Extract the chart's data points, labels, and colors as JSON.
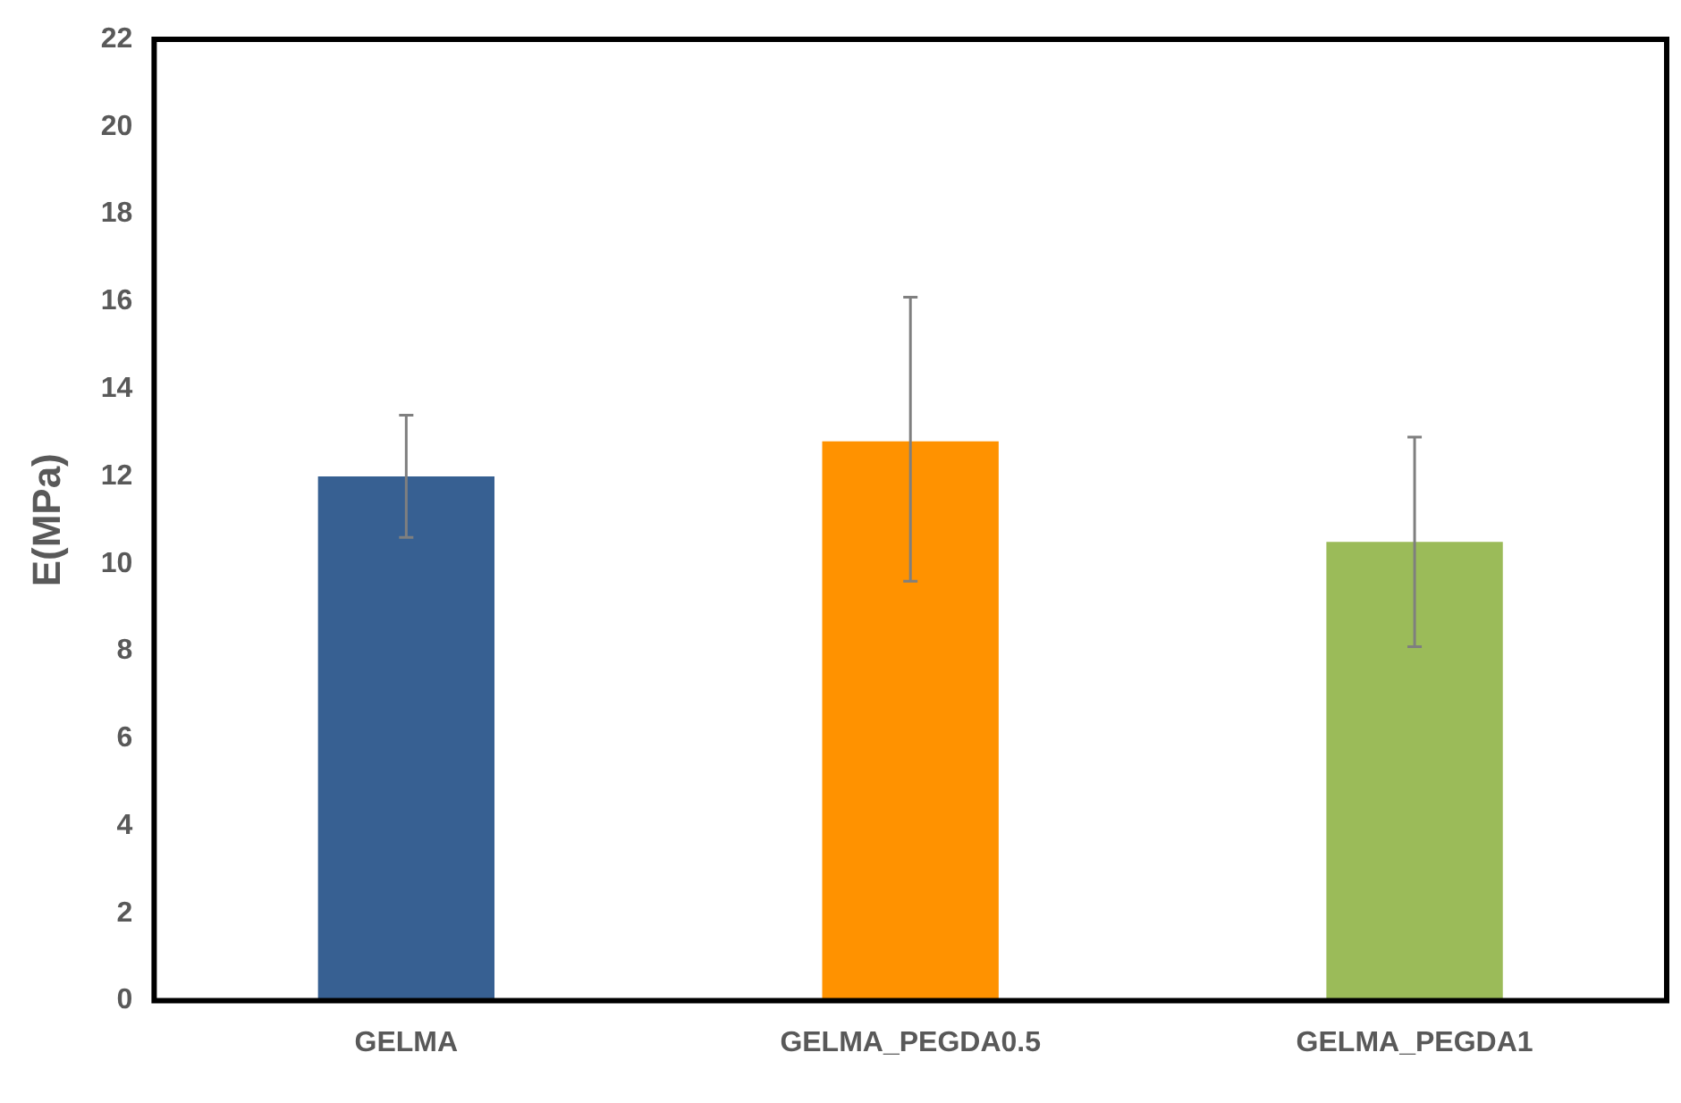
{
  "chart_data": {
    "type": "bar",
    "ylabel": "E(MPa)",
    "categories": [
      "GELMA",
      "GELMA_PEGDA0.5",
      "GELMA_PEGDA1"
    ],
    "values": [
      12.0,
      12.8,
      10.5
    ],
    "colors": [
      "#376092",
      "#ff9200",
      "#9bbb59"
    ],
    "errors": [
      [
        10.6,
        13.4
      ],
      [
        9.6,
        16.1
      ],
      [
        8.1,
        12.9
      ]
    ],
    "ylim": [
      0,
      22
    ],
    "yticks": [
      0,
      2,
      4,
      6,
      8,
      10,
      12,
      14,
      16,
      18,
      20,
      22
    ],
    "grid": false,
    "legend": false
  }
}
